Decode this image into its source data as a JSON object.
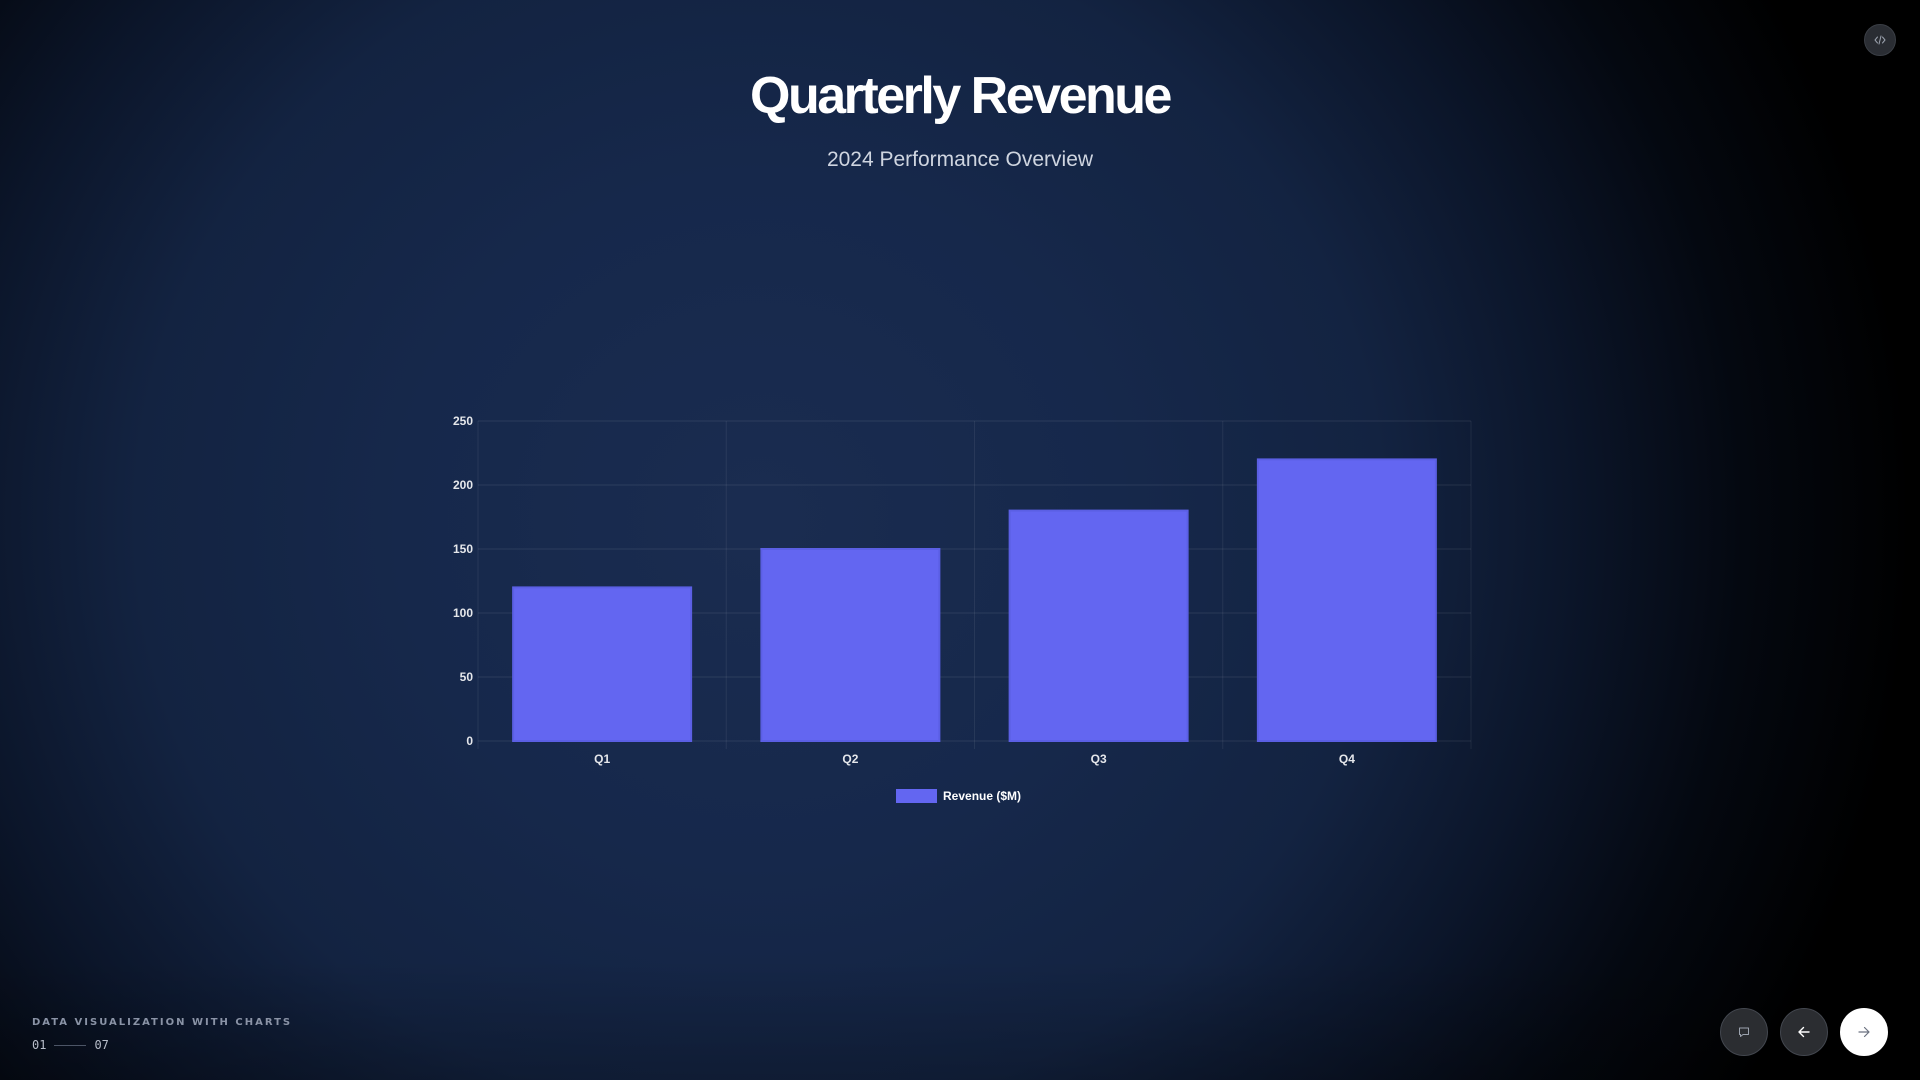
{
  "slide": {
    "title": "Quarterly Revenue",
    "subtitle": "2024 Performance Overview"
  },
  "footer": {
    "deck_title": "DATA VISUALIZATION WITH CHARTS",
    "current_slide": "01",
    "total_slides": "07"
  },
  "controls": {
    "code_icon": "code-icon",
    "notes_icon": "comment-icon",
    "prev_icon": "arrow-left-icon",
    "next_icon": "arrow-right-icon"
  },
  "colors": {
    "bar": "#6366f1",
    "text": "#ffffff"
  },
  "chart_data": {
    "type": "bar",
    "categories": [
      "Q1",
      "Q2",
      "Q3",
      "Q4"
    ],
    "series": [
      {
        "name": "Revenue ($M)",
        "values": [
          120,
          150,
          180,
          220
        ],
        "color": "#6366f1"
      }
    ],
    "ylim": [
      0,
      250
    ],
    "yticks": [
      0,
      50,
      100,
      150,
      200,
      250
    ],
    "grid": true,
    "legend": "bottom"
  }
}
